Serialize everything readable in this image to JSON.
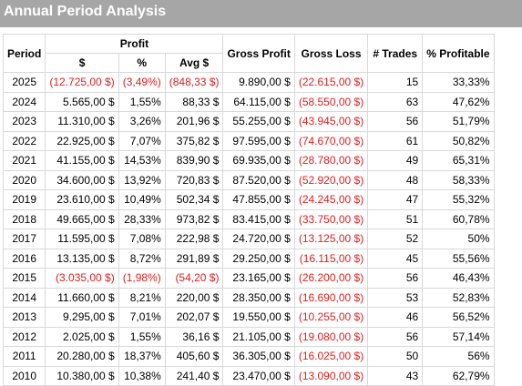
{
  "title": "Annual Period Analysis",
  "headers": {
    "period": "Period",
    "profit": "Profit",
    "usd": "$",
    "pct": "%",
    "avg": "Avg $",
    "gross_profit": "Gross Profit",
    "gross_loss": "Gross Loss",
    "trades": "# Trades",
    "pct_profitable": "% Profitable"
  },
  "colors": {
    "negative": "#e02020",
    "title_bar": "#a6a6a6"
  },
  "rows": [
    {
      "period": "2025",
      "usd": "(12.725,00 $)",
      "pct": "(3,49%)",
      "avg": "(848,33 $)",
      "gross_profit": "9.890,00 $",
      "gross_loss": "(22.615,00 $)",
      "trades": "15",
      "pct_profitable": "33,33%",
      "negative_profit": true
    },
    {
      "period": "2024",
      "usd": "5.565,00 $",
      "pct": "1,55%",
      "avg": "88,33 $",
      "gross_profit": "64.115,00 $",
      "gross_loss": "(58.550,00 $)",
      "trades": "63",
      "pct_profitable": "47,62%",
      "negative_profit": false
    },
    {
      "period": "2023",
      "usd": "11.310,00 $",
      "pct": "3,26%",
      "avg": "201,96 $",
      "gross_profit": "55.255,00 $",
      "gross_loss": "(43.945,00 $)",
      "trades": "56",
      "pct_profitable": "51,79%",
      "negative_profit": false
    },
    {
      "period": "2022",
      "usd": "22.925,00 $",
      "pct": "7,07%",
      "avg": "375,82 $",
      "gross_profit": "97.595,00 $",
      "gross_loss": "(74.670,00 $)",
      "trades": "61",
      "pct_profitable": "50,82%",
      "negative_profit": false
    },
    {
      "period": "2021",
      "usd": "41.155,00 $",
      "pct": "14,53%",
      "avg": "839,90 $",
      "gross_profit": "69.935,00 $",
      "gross_loss": "(28.780,00 $)",
      "trades": "49",
      "pct_profitable": "65,31%",
      "negative_profit": false
    },
    {
      "period": "2020",
      "usd": "34.600,00 $",
      "pct": "13,92%",
      "avg": "720,83 $",
      "gross_profit": "87.520,00 $",
      "gross_loss": "(52.920,00 $)",
      "trades": "48",
      "pct_profitable": "58,33%",
      "negative_profit": false
    },
    {
      "period": "2019",
      "usd": "23.610,00 $",
      "pct": "10,49%",
      "avg": "502,34 $",
      "gross_profit": "47.855,00 $",
      "gross_loss": "(24.245,00 $)",
      "trades": "47",
      "pct_profitable": "55,32%",
      "negative_profit": false
    },
    {
      "period": "2018",
      "usd": "49.665,00 $",
      "pct": "28,33%",
      "avg": "973,82 $",
      "gross_profit": "83.415,00 $",
      "gross_loss": "(33.750,00 $)",
      "trades": "51",
      "pct_profitable": "60,78%",
      "negative_profit": false
    },
    {
      "period": "2017",
      "usd": "11.595,00 $",
      "pct": "7,08%",
      "avg": "222,98 $",
      "gross_profit": "24.720,00 $",
      "gross_loss": "(13.125,00 $)",
      "trades": "52",
      "pct_profitable": "50%",
      "negative_profit": false
    },
    {
      "period": "2016",
      "usd": "13.135,00 $",
      "pct": "8,72%",
      "avg": "291,89 $",
      "gross_profit": "29.250,00 $",
      "gross_loss": "(16.115,00 $)",
      "trades": "45",
      "pct_profitable": "55,56%",
      "negative_profit": false
    },
    {
      "period": "2015",
      "usd": "(3.035,00 $)",
      "pct": "(1,98%)",
      "avg": "(54,20 $)",
      "gross_profit": "23.165,00 $",
      "gross_loss": "(26.200,00 $)",
      "trades": "56",
      "pct_profitable": "46,43%",
      "negative_profit": true
    },
    {
      "period": "2014",
      "usd": "11.660,00 $",
      "pct": "8,21%",
      "avg": "220,00 $",
      "gross_profit": "28.350,00 $",
      "gross_loss": "(16.690,00 $)",
      "trades": "53",
      "pct_profitable": "52,83%",
      "negative_profit": false
    },
    {
      "period": "2013",
      "usd": "9.295,00 $",
      "pct": "7,01%",
      "avg": "202,07 $",
      "gross_profit": "19.550,00 $",
      "gross_loss": "(10.255,00 $)",
      "trades": "46",
      "pct_profitable": "56,52%",
      "negative_profit": false
    },
    {
      "period": "2012",
      "usd": "2.025,00 $",
      "pct": "1,55%",
      "avg": "36,16 $",
      "gross_profit": "21.105,00 $",
      "gross_loss": "(19.080,00 $)",
      "trades": "56",
      "pct_profitable": "57,14%",
      "negative_profit": false
    },
    {
      "period": "2011",
      "usd": "20.280,00 $",
      "pct": "18,37%",
      "avg": "405,60 $",
      "gross_profit": "36.305,00 $",
      "gross_loss": "(16.025,00 $)",
      "trades": "50",
      "pct_profitable": "56%",
      "negative_profit": false
    },
    {
      "period": "2010",
      "usd": "10.380,00 $",
      "pct": "10,38%",
      "avg": "241,40 $",
      "gross_profit": "23.470,00 $",
      "gross_loss": "(13.090,00 $)",
      "trades": "43",
      "pct_profitable": "62,79%",
      "negative_profit": false
    }
  ]
}
